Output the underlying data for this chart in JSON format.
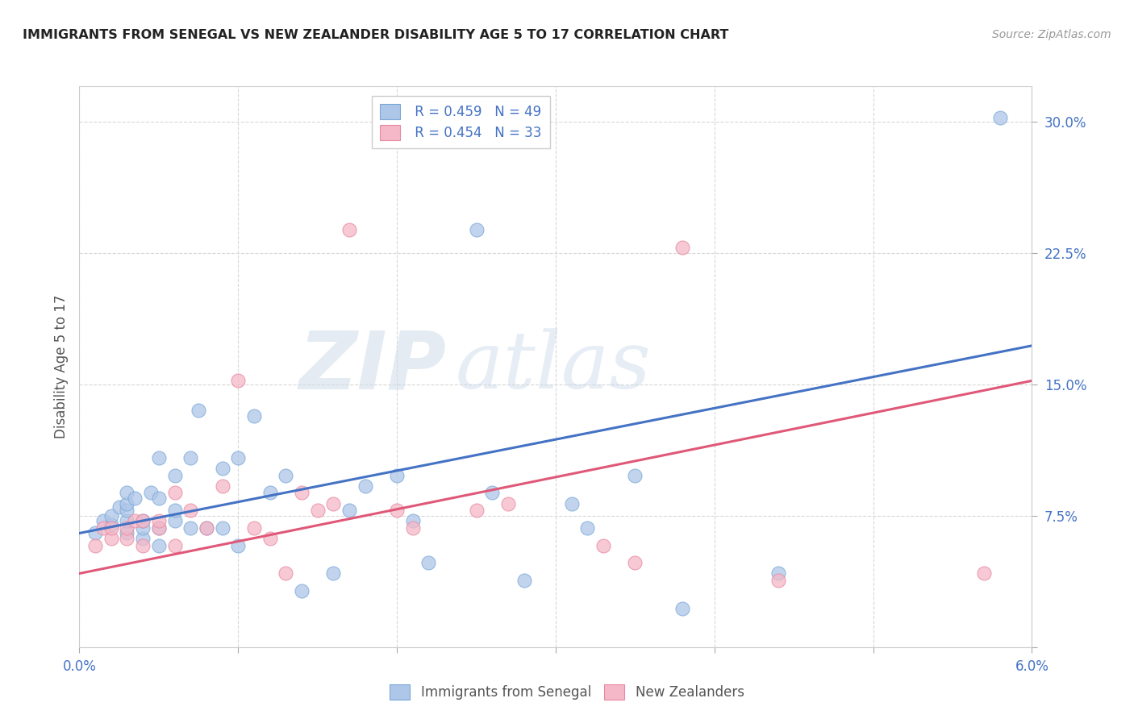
{
  "title": "IMMIGRANTS FROM SENEGAL VS NEW ZEALANDER DISABILITY AGE 5 TO 17 CORRELATION CHART",
  "source": "Source: ZipAtlas.com",
  "ylabel": "Disability Age 5 to 17",
  "xlim": [
    0.0,
    0.06
  ],
  "ylim": [
    0.0,
    0.32
  ],
  "xticks": [
    0.0,
    0.01,
    0.02,
    0.03,
    0.04,
    0.05,
    0.06
  ],
  "xticklabels": [
    "0.0%",
    "",
    "",
    "",
    "",
    "",
    "6.0%"
  ],
  "yticks": [
    0.0,
    0.075,
    0.15,
    0.225,
    0.3
  ],
  "yticklabels": [
    "",
    "7.5%",
    "15.0%",
    "22.5%",
    "30.0%"
  ],
  "grid_color": "#d8d8d8",
  "background_color": "#ffffff",
  "watermark_zip": "ZIP",
  "watermark_atlas": "atlas",
  "blue_color": "#aec6e8",
  "pink_color": "#f4b8c8",
  "blue_line_color": "#4472c4",
  "pink_line_color": "#e05878",
  "blue_scatter_x": [
    0.001,
    0.0015,
    0.002,
    0.002,
    0.0025,
    0.003,
    0.003,
    0.003,
    0.003,
    0.003,
    0.0035,
    0.004,
    0.004,
    0.004,
    0.0045,
    0.005,
    0.005,
    0.005,
    0.005,
    0.006,
    0.006,
    0.006,
    0.007,
    0.007,
    0.0075,
    0.008,
    0.009,
    0.009,
    0.01,
    0.01,
    0.011,
    0.012,
    0.013,
    0.014,
    0.016,
    0.017,
    0.018,
    0.02,
    0.021,
    0.022,
    0.025,
    0.026,
    0.028,
    0.031,
    0.032,
    0.035,
    0.038,
    0.044,
    0.058
  ],
  "blue_scatter_y": [
    0.065,
    0.072,
    0.07,
    0.075,
    0.08,
    0.065,
    0.072,
    0.078,
    0.082,
    0.088,
    0.085,
    0.062,
    0.068,
    0.072,
    0.088,
    0.058,
    0.068,
    0.085,
    0.108,
    0.072,
    0.078,
    0.098,
    0.068,
    0.108,
    0.135,
    0.068,
    0.068,
    0.102,
    0.058,
    0.108,
    0.132,
    0.088,
    0.098,
    0.032,
    0.042,
    0.078,
    0.092,
    0.098,
    0.072,
    0.048,
    0.238,
    0.088,
    0.038,
    0.082,
    0.068,
    0.098,
    0.022,
    0.042,
    0.302
  ],
  "pink_scatter_x": [
    0.001,
    0.0015,
    0.002,
    0.002,
    0.003,
    0.003,
    0.0035,
    0.004,
    0.004,
    0.005,
    0.005,
    0.006,
    0.006,
    0.007,
    0.008,
    0.009,
    0.01,
    0.011,
    0.012,
    0.013,
    0.014,
    0.015,
    0.016,
    0.017,
    0.02,
    0.021,
    0.025,
    0.027,
    0.033,
    0.035,
    0.038,
    0.044,
    0.057
  ],
  "pink_scatter_y": [
    0.058,
    0.068,
    0.062,
    0.068,
    0.062,
    0.068,
    0.072,
    0.058,
    0.072,
    0.068,
    0.072,
    0.058,
    0.088,
    0.078,
    0.068,
    0.092,
    0.152,
    0.068,
    0.062,
    0.042,
    0.088,
    0.078,
    0.082,
    0.238,
    0.078,
    0.068,
    0.078,
    0.082,
    0.058,
    0.048,
    0.228,
    0.038,
    0.042
  ],
  "blue_trendline_x": [
    0.0,
    0.06
  ],
  "blue_trendline_y": [
    0.065,
    0.172
  ],
  "pink_trendline_x": [
    0.0,
    0.06
  ],
  "pink_trendline_y": [
    0.042,
    0.152
  ],
  "legend_r1": "R = 0.459",
  "legend_n1": "N = 49",
  "legend_r2": "R = 0.454",
  "legend_n2": "N = 33",
  "legend_label_blue": "Immigrants from Senegal",
  "legend_label_pink": "New Zealanders"
}
